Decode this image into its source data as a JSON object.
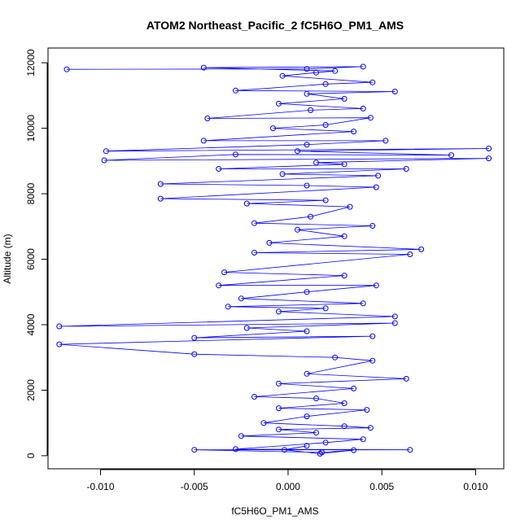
{
  "chart_data": {
    "type": "line",
    "title": "ATOM2 Northeast_Pacific_2 fC5H6O_PM1_AMS",
    "xlabel": "fC5H6O_PM1_AMS",
    "ylabel": "Altitude (m)",
    "xlim": [
      -0.0128,
      0.0115
    ],
    "ylim": [
      -400,
      12450
    ],
    "x_ticks": [
      -0.01,
      -0.005,
      0.0,
      0.005,
      0.01
    ],
    "x_tick_labels": [
      "-0.010",
      "-0.005",
      "0.000",
      "0.005",
      "0.010"
    ],
    "y_ticks": [
      0,
      2000,
      4000,
      6000,
      8000,
      10000,
      12000
    ],
    "y_tick_labels": [
      "0",
      "2000",
      "4000",
      "6000",
      "8000",
      "10000",
      "12000"
    ],
    "grid": false,
    "series": [
      {
        "color": "#0000ff",
        "marker": "open-circle",
        "line": true,
        "points": [
          [
            -0.0118,
            11800
          ],
          [
            0.001,
            11810
          ],
          [
            0.004,
            11880
          ],
          [
            -0.0045,
            11850
          ],
          [
            0.0025,
            11750
          ],
          [
            0.0015,
            11700
          ],
          [
            -0.0003,
            11600
          ],
          [
            0.0045,
            11400
          ],
          [
            0.002,
            11350
          ],
          [
            -0.0028,
            11150
          ],
          [
            0.0057,
            11120
          ],
          [
            0.001,
            11050
          ],
          [
            0.003,
            10900
          ],
          [
            -0.0005,
            10750
          ],
          [
            0.004,
            10600
          ],
          [
            0.0012,
            10550
          ],
          [
            -0.0043,
            10300
          ],
          [
            0.0044,
            10320
          ],
          [
            0.002,
            10100
          ],
          [
            -0.0008,
            10000
          ],
          [
            0.0035,
            9900
          ],
          [
            -0.0045,
            9620
          ],
          [
            0.0052,
            9620
          ],
          [
            0.001,
            9500
          ],
          [
            -0.0097,
            9300
          ],
          [
            0.0107,
            9380
          ],
          [
            0.0005,
            9300
          ],
          [
            0.0087,
            9180
          ],
          [
            -0.0028,
            9200
          ],
          [
            -0.0098,
            9020
          ],
          [
            0.0107,
            9080
          ],
          [
            0.0015,
            8950
          ],
          [
            0.003,
            8900
          ],
          [
            -0.0037,
            8760
          ],
          [
            0.0063,
            8760
          ],
          [
            -0.0003,
            8600
          ],
          [
            0.0048,
            8550
          ],
          [
            -0.0068,
            8300
          ],
          [
            0.001,
            8250
          ],
          [
            0.0047,
            8200
          ],
          [
            -0.0068,
            7850
          ],
          [
            0.002,
            7800
          ],
          [
            -0.0022,
            7700
          ],
          [
            0.0033,
            7600
          ],
          [
            0.0012,
            7300
          ],
          [
            -0.0018,
            7100
          ],
          [
            0.0045,
            7020
          ],
          [
            0.0005,
            6900
          ],
          [
            0.003,
            6700
          ],
          [
            -0.001,
            6500
          ],
          [
            0.0071,
            6300
          ],
          [
            -0.0018,
            6200
          ],
          [
            0.0065,
            6150
          ],
          [
            -0.0034,
            5600
          ],
          [
            0.003,
            5500
          ],
          [
            -0.0037,
            5200
          ],
          [
            0.0047,
            5200
          ],
          [
            0.001,
            5000
          ],
          [
            -0.0025,
            4800
          ],
          [
            0.004,
            4650
          ],
          [
            -0.0032,
            4550
          ],
          [
            0.002,
            4500
          ],
          [
            -0.0005,
            4400
          ],
          [
            0.0057,
            4250
          ],
          [
            -0.0122,
            3950
          ],
          [
            0.0057,
            4050
          ],
          [
            -0.0022,
            3900
          ],
          [
            0.001,
            3800
          ],
          [
            -0.005,
            3600
          ],
          [
            0.0045,
            3650
          ],
          [
            -0.0122,
            3400
          ],
          [
            -0.005,
            3100
          ],
          [
            0.0025,
            3000
          ],
          [
            0.0045,
            2900
          ],
          [
            0.001,
            2500
          ],
          [
            0.0063,
            2350
          ],
          [
            -0.0005,
            2200
          ],
          [
            0.0035,
            2050
          ],
          [
            -0.0018,
            1800
          ],
          [
            0.0015,
            1750
          ],
          [
            0.003,
            1600
          ],
          [
            -0.0005,
            1450
          ],
          [
            0.0042,
            1400
          ],
          [
            0.001,
            1200
          ],
          [
            -0.0013,
            1000
          ],
          [
            0.003,
            900
          ],
          [
            0.0044,
            850
          ],
          [
            -0.0005,
            800
          ],
          [
            0.0015,
            700
          ],
          [
            -0.0025,
            600
          ],
          [
            0.004,
            500
          ],
          [
            0.002,
            400
          ],
          [
            -0.0028,
            200
          ],
          [
            0.0065,
            180
          ],
          [
            -0.005,
            180
          ],
          [
            0.0018,
            100
          ],
          [
            0.0035,
            170
          ],
          [
            0.0017,
            60
          ],
          [
            -0.0002,
            180
          ],
          [
            0.001,
            300
          ]
        ]
      }
    ]
  }
}
